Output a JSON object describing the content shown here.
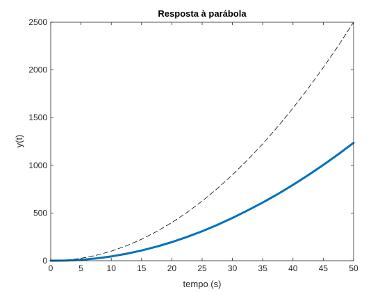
{
  "chart_data": {
    "type": "line",
    "title": "Resposta à parábola",
    "xlabel": "tempo (s)",
    "ylabel": "y(t)",
    "xlim": [
      0,
      50
    ],
    "ylim": [
      0,
      2500
    ],
    "xticks": [
      0,
      5,
      10,
      15,
      20,
      25,
      30,
      35,
      40,
      45,
      50
    ],
    "yticks": [
      0,
      500,
      1000,
      1500,
      2000,
      2500
    ],
    "grid": false,
    "x": [
      0,
      2.5,
      5,
      7.5,
      10,
      12.5,
      15,
      17.5,
      20,
      22.5,
      25,
      27.5,
      30,
      32.5,
      35,
      37.5,
      40,
      42.5,
      45,
      47.5,
      50
    ],
    "series": [
      {
        "style": "dashed",
        "color": "#000000",
        "values": [
          0,
          6.25,
          25,
          56.25,
          100,
          156.25,
          225,
          306.25,
          400,
          506.25,
          625,
          756.25,
          900,
          1056.25,
          1225,
          1406.25,
          1600,
          1806.25,
          2025,
          2256.25,
          2500
        ]
      },
      {
        "style": "solid",
        "color": "#0072BD",
        "values": [
          0,
          2,
          9,
          24,
          45,
          73,
          107,
          148,
          195,
          249,
          309,
          375,
          448,
          527,
          610,
          699,
          795,
          897,
          1004,
          1117,
          1236
        ]
      }
    ]
  }
}
